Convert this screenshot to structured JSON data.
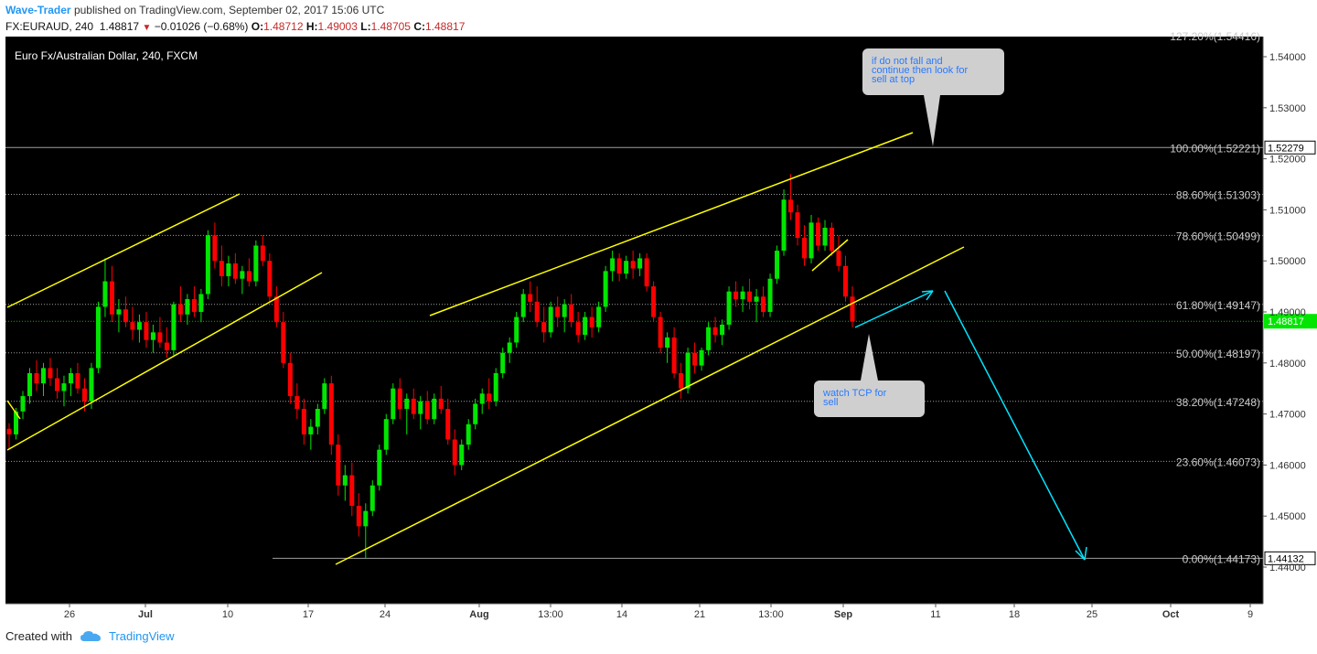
{
  "header": {
    "author": "Wave-Trader",
    "published_text": "published on TradingView.com, September 02, 2017 15:06 UTC",
    "symbol": "FX:EURAUD, 240",
    "last": "1.48817",
    "change": "−0.01026 (−0.68%)",
    "o_label": "O:",
    "o_value": "1.48712",
    "h_label": "H:",
    "h_value": "1.49003",
    "l_label": "L:",
    "l_value": "1.48705",
    "c_label": "C:",
    "c_value": "1.48817"
  },
  "footer": {
    "created_with": "Created with",
    "brand": "TradingView"
  },
  "colors": {
    "up": "#00e600",
    "down": "#ff0000",
    "channel": "#ffff00",
    "arrow": "#00e5ff",
    "background": "#000000",
    "fib_line": "#9e9e9e"
  },
  "chart_data": {
    "type": "candlestick",
    "title": "Euro Fx/Australian Dollar, 240, FXCM",
    "x_labels": [
      "26",
      "Jul",
      "10",
      "17",
      "24",
      "Aug",
      "13:00",
      "14",
      "21",
      "13:00",
      "Sep",
      "11",
      "18",
      "25",
      "Oct",
      "9"
    ],
    "y_ticks": [
      "1.54000",
      "1.53000",
      "1.52000",
      "1.51000",
      "1.50000",
      "1.49000",
      "1.48000",
      "1.47000",
      "1.46000",
      "1.45000",
      "1.44000"
    ],
    "y_range": [
      1.4335,
      1.5435
    ],
    "current_price": "1.48817",
    "top_partial_label": "127.20%(1.54416)",
    "fib_levels": [
      {
        "label": "100.00%(1.52221)",
        "value": 1.52221,
        "box": "1.52279"
      },
      {
        "label": "88.60%(1.51303)",
        "value": 1.51303
      },
      {
        "label": "78.60%(1.50499)",
        "value": 1.50499
      },
      {
        "label": "61.80%(1.49147)",
        "value": 1.49147
      },
      {
        "label": "50.00%(1.48197)",
        "value": 1.48197
      },
      {
        "label": "38.20%(1.47248)",
        "value": 1.47248
      },
      {
        "label": "23.60%(1.46073)",
        "value": 1.46073
      },
      {
        "label": "0.00%(1.44173)",
        "value": 1.44173,
        "box": "1.44132"
      }
    ],
    "candles": [
      [
        1.4671,
        1.4682,
        1.463,
        1.466
      ],
      [
        1.466,
        1.4712,
        1.465,
        1.4705
      ],
      [
        1.4705,
        1.4745,
        1.469,
        1.4735
      ],
      [
        1.4735,
        1.479,
        1.472,
        1.478
      ],
      [
        1.478,
        1.4805,
        1.4745,
        1.476
      ],
      [
        1.476,
        1.48,
        1.4735,
        1.479
      ],
      [
        1.479,
        1.481,
        1.4755,
        1.477
      ],
      [
        1.477,
        1.479,
        1.473,
        1.4745
      ],
      [
        1.4745,
        1.4775,
        1.4715,
        1.476
      ],
      [
        1.476,
        1.479,
        1.4735,
        1.478
      ],
      [
        1.478,
        1.48,
        1.474,
        1.475
      ],
      [
        1.475,
        1.477,
        1.4705,
        1.4725
      ],
      [
        1.4725,
        1.48,
        1.471,
        1.479
      ],
      [
        1.479,
        1.492,
        1.478,
        1.491
      ],
      [
        1.491,
        1.5005,
        1.489,
        1.496
      ],
      [
        1.496,
        1.499,
        1.488,
        1.4895
      ],
      [
        1.4895,
        1.4925,
        1.486,
        1.4905
      ],
      [
        1.4905,
        1.493,
        1.487,
        1.488
      ],
      [
        1.488,
        1.491,
        1.4845,
        1.4865
      ],
      [
        1.4865,
        1.4895,
        1.484,
        1.488
      ],
      [
        1.488,
        1.49,
        1.483,
        1.4845
      ],
      [
        1.4845,
        1.4875,
        1.482,
        1.486
      ],
      [
        1.486,
        1.489,
        1.483,
        1.484
      ],
      [
        1.484,
        1.487,
        1.481,
        1.4825
      ],
      [
        1.4825,
        1.492,
        1.4815,
        1.4915
      ],
      [
        1.4915,
        1.495,
        1.488,
        1.4895
      ],
      [
        1.4895,
        1.4935,
        1.4875,
        1.4925
      ],
      [
        1.4925,
        1.495,
        1.489,
        1.49
      ],
      [
        1.49,
        1.4945,
        1.488,
        1.4935
      ],
      [
        1.4935,
        1.506,
        1.4925,
        1.505
      ],
      [
        1.505,
        1.5075,
        1.4985,
        1.5
      ],
      [
        1.5,
        1.503,
        1.495,
        1.497
      ],
      [
        1.497,
        1.501,
        1.495,
        1.4995
      ],
      [
        1.4995,
        1.5015,
        1.4955,
        1.4965
      ],
      [
        1.4965,
        1.499,
        1.4935,
        1.498
      ],
      [
        1.498,
        1.5005,
        1.495,
        1.496
      ],
      [
        1.496,
        1.504,
        1.495,
        1.503
      ],
      [
        1.503,
        1.505,
        1.499,
        1.5
      ],
      [
        1.5,
        1.5015,
        1.492,
        1.493
      ],
      [
        1.493,
        1.495,
        1.487,
        1.488
      ],
      [
        1.488,
        1.49,
        1.479,
        1.48
      ],
      [
        1.48,
        1.482,
        1.472,
        1.4735
      ],
      [
        1.4735,
        1.476,
        1.469,
        1.471
      ],
      [
        1.471,
        1.473,
        1.464,
        1.466
      ],
      [
        1.466,
        1.469,
        1.463,
        1.4675
      ],
      [
        1.4675,
        1.472,
        1.466,
        1.471
      ],
      [
        1.471,
        1.477,
        1.47,
        1.476
      ],
      [
        1.476,
        1.4775,
        1.462,
        1.464
      ],
      [
        1.464,
        1.466,
        1.454,
        1.456
      ],
      [
        1.456,
        1.46,
        1.453,
        1.458
      ],
      [
        1.458,
        1.4605,
        1.45,
        1.452
      ],
      [
        1.452,
        1.4545,
        1.446,
        1.448
      ],
      [
        1.448,
        1.4525,
        1.4417,
        1.451
      ],
      [
        1.451,
        1.457,
        1.45,
        1.456
      ],
      [
        1.456,
        1.464,
        1.455,
        1.463
      ],
      [
        1.463,
        1.47,
        1.462,
        1.469
      ],
      [
        1.469,
        1.476,
        1.468,
        1.475
      ],
      [
        1.475,
        1.477,
        1.469,
        1.471
      ],
      [
        1.471,
        1.474,
        1.466,
        1.473
      ],
      [
        1.473,
        1.475,
        1.469,
        1.47
      ],
      [
        1.47,
        1.4735,
        1.467,
        1.4725
      ],
      [
        1.4725,
        1.4745,
        1.468,
        1.469
      ],
      [
        1.469,
        1.474,
        1.468,
        1.473
      ],
      [
        1.473,
        1.4755,
        1.47,
        1.471
      ],
      [
        1.471,
        1.473,
        1.464,
        1.465
      ],
      [
        1.465,
        1.467,
        1.458,
        1.46
      ],
      [
        1.46,
        1.465,
        1.459,
        1.464
      ],
      [
        1.464,
        1.469,
        1.463,
        1.468
      ],
      [
        1.468,
        1.473,
        1.467,
        1.472
      ],
      [
        1.472,
        1.475,
        1.47,
        1.474
      ],
      [
        1.474,
        1.477,
        1.471,
        1.4725
      ],
      [
        1.4725,
        1.479,
        1.4715,
        1.478
      ],
      [
        1.478,
        1.483,
        1.477,
        1.482
      ],
      [
        1.482,
        1.485,
        1.48,
        1.484
      ],
      [
        1.484,
        1.49,
        1.483,
        1.489
      ],
      [
        1.489,
        1.4945,
        1.488,
        1.4935
      ],
      [
        1.4935,
        1.496,
        1.49,
        1.492
      ],
      [
        1.492,
        1.495,
        1.487,
        1.488
      ],
      [
        1.488,
        1.491,
        1.484,
        1.486
      ],
      [
        1.486,
        1.492,
        1.485,
        1.491
      ],
      [
        1.491,
        1.493,
        1.487,
        1.489
      ],
      [
        1.489,
        1.4925,
        1.486,
        1.4915
      ],
      [
        1.4915,
        1.4935,
        1.487,
        1.488
      ],
      [
        1.488,
        1.49,
        1.484,
        1.4855
      ],
      [
        1.4855,
        1.49,
        1.4845,
        1.489
      ],
      [
        1.489,
        1.491,
        1.485,
        1.487
      ],
      [
        1.487,
        1.492,
        1.486,
        1.491
      ],
      [
        1.491,
        1.499,
        1.49,
        1.498
      ],
      [
        1.498,
        1.502,
        1.496,
        1.5005
      ],
      [
        1.5005,
        1.5015,
        1.496,
        1.4975
      ],
      [
        1.4975,
        1.501,
        1.4965,
        1.5
      ],
      [
        1.5,
        1.502,
        1.4965,
        1.4985
      ],
      [
        1.4985,
        1.5015,
        1.497,
        1.5005
      ],
      [
        1.5005,
        1.5015,
        1.494,
        1.495
      ],
      [
        1.495,
        1.496,
        1.488,
        1.489
      ],
      [
        1.489,
        1.49,
        1.482,
        1.483
      ],
      [
        1.483,
        1.486,
        1.48,
        1.485
      ],
      [
        1.485,
        1.487,
        1.477,
        1.478
      ],
      [
        1.478,
        1.48,
        1.473,
        1.475
      ],
      [
        1.475,
        1.483,
        1.474,
        1.482
      ],
      [
        1.482,
        1.484,
        1.478,
        1.4795
      ],
      [
        1.4795,
        1.483,
        1.4785,
        1.4825
      ],
      [
        1.4825,
        1.488,
        1.4815,
        1.487
      ],
      [
        1.487,
        1.489,
        1.484,
        1.4855
      ],
      [
        1.4855,
        1.4885,
        1.4835,
        1.4875
      ],
      [
        1.4875,
        1.495,
        1.4865,
        1.494
      ],
      [
        1.494,
        1.496,
        1.491,
        1.4925
      ],
      [
        1.4925,
        1.495,
        1.49,
        1.494
      ],
      [
        1.494,
        1.4965,
        1.4905,
        1.492
      ],
      [
        1.492,
        1.4945,
        1.488,
        1.493
      ],
      [
        1.493,
        1.495,
        1.489,
        1.49
      ],
      [
        1.49,
        1.4975,
        1.489,
        1.4965
      ],
      [
        1.4965,
        1.503,
        1.4955,
        1.502
      ],
      [
        1.502,
        1.514,
        1.501,
        1.512
      ],
      [
        1.512,
        1.517,
        1.508,
        1.5095
      ],
      [
        1.5095,
        1.511,
        1.503,
        1.5045
      ],
      [
        1.5045,
        1.507,
        1.499,
        1.5005
      ],
      [
        1.5005,
        1.509,
        1.4995,
        1.5075
      ],
      [
        1.5075,
        1.5085,
        1.502,
        1.503
      ],
      [
        1.503,
        1.508,
        1.502,
        1.5065
      ],
      [
        1.5065,
        1.5075,
        1.501,
        1.502
      ],
      [
        1.502,
        1.505,
        1.498,
        1.499
      ],
      [
        1.499,
        1.501,
        1.492,
        1.493
      ],
      [
        1.493,
        1.495,
        1.487,
        1.4882
      ]
    ]
  },
  "annotations": {
    "top_note": "if do not fall and continue then look for sell at top",
    "bottom_note": "watch TCP for sell"
  }
}
